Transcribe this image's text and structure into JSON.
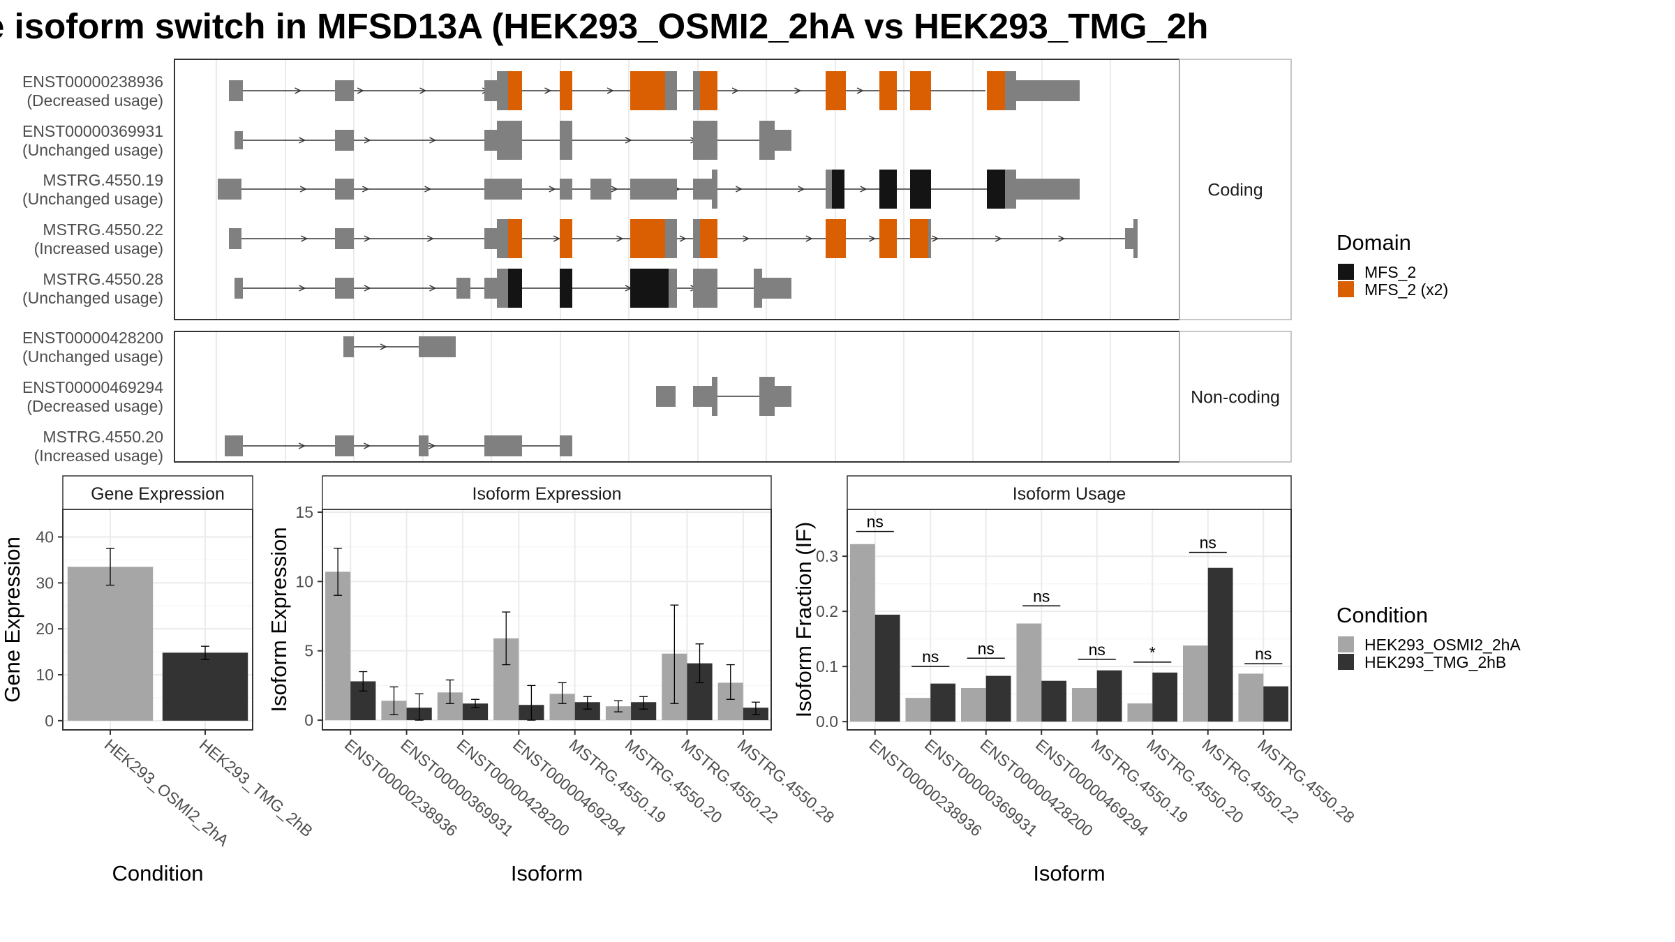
{
  "title": "e isoform switch in MFSD13A (HEK293_OSMI2_2hA vs HEK293_TMG_2h",
  "colors": {
    "mfs2": "#141414",
    "mfs2_x2": "#d95f02",
    "exon": "#808080",
    "cond1": "#a6a6a6",
    "cond2": "#333333"
  },
  "structure": {
    "coding_label": "Coding",
    "noncoding_label": "Non-coding",
    "coding": [
      {
        "id": "ENST00000238936",
        "usage": "(Decreased usage)"
      },
      {
        "id": "ENST00000369931",
        "usage": "(Unchanged usage)"
      },
      {
        "id": "MSTRG.4550.19",
        "usage": "(Unchanged usage)"
      },
      {
        "id": "MSTRG.4550.22",
        "usage": "(Increased usage)"
      },
      {
        "id": "MSTRG.4550.28",
        "usage": "(Unchanged usage)"
      }
    ],
    "noncoding": [
      {
        "id": "ENST00000428200",
        "usage": "(Unchanged usage)"
      },
      {
        "id": "ENST00000469294",
        "usage": "(Decreased usage)"
      },
      {
        "id": "MSTRG.4550.20",
        "usage": "(Increased usage)"
      }
    ]
  },
  "legend_domain": {
    "title": "Domain",
    "items": [
      {
        "label": "MFS_2",
        "color_key": "mfs2"
      },
      {
        "label": "MFS_2 (x2)",
        "color_key": "mfs2_x2"
      }
    ]
  },
  "legend_condition": {
    "title": "Condition",
    "items": [
      {
        "label": "HEK293_OSMI2_2hA",
        "color_key": "cond1"
      },
      {
        "label": "HEK293_TMG_2hB",
        "color_key": "cond2"
      }
    ]
  },
  "chart_data": [
    {
      "type": "bar",
      "title": "Gene Expression",
      "xlabel": "Condition",
      "ylabel": "Gene Expression",
      "ylim": [
        -2,
        46
      ],
      "yticks": [
        0,
        10,
        20,
        30,
        40
      ],
      "categories": [
        "HEK293_OSMI2_2hA",
        "HEK293_TMG_2hB"
      ],
      "values": [
        33.5,
        14.8
      ],
      "errors": [
        [
          29.5,
          37.5
        ],
        [
          13.3,
          16.2
        ]
      ]
    },
    {
      "type": "bar",
      "title": "Isoform Expression",
      "xlabel": "Isoform",
      "ylabel": "Isoform Expression",
      "ylim": [
        -0.7,
        15.2
      ],
      "yticks": [
        0,
        5,
        10,
        15
      ],
      "categories": [
        "ENST00000238936",
        "ENST00000369931",
        "ENST00000428200",
        "ENST00000469294",
        "MSTRG.4550.19",
        "MSTRG.4550.20",
        "MSTRG.4550.22",
        "MSTRG.4550.28"
      ],
      "series": [
        {
          "name": "HEK293_OSMI2_2hA",
          "values": [
            10.7,
            1.4,
            2.0,
            5.9,
            1.9,
            1.0,
            4.8,
            2.7
          ],
          "errors": [
            [
              9.0,
              12.4
            ],
            [
              0.4,
              2.4
            ],
            [
              1.2,
              2.9
            ],
            [
              4.0,
              7.8
            ],
            [
              1.2,
              2.7
            ],
            [
              0.6,
              1.4
            ],
            [
              1.2,
              8.3
            ],
            [
              1.5,
              4.0
            ]
          ]
        },
        {
          "name": "HEK293_TMG_2hB",
          "values": [
            2.8,
            0.9,
            1.2,
            1.1,
            1.3,
            1.3,
            4.1,
            0.9
          ],
          "errors": [
            [
              2.1,
              3.5
            ],
            [
              0.0,
              1.9
            ],
            [
              0.9,
              1.5
            ],
            [
              0.0,
              2.5
            ],
            [
              0.8,
              1.7
            ],
            [
              0.8,
              1.7
            ],
            [
              2.7,
              5.5
            ],
            [
              0.4,
              1.3
            ]
          ]
        }
      ]
    },
    {
      "type": "bar",
      "title": "Isoform Usage",
      "xlabel": "Isoform",
      "ylabel": "Isoform Fraction (IF)",
      "ylim": [
        -0.015,
        0.385
      ],
      "yticks": [
        0.0,
        0.1,
        0.2,
        0.3
      ],
      "ytick_labels": [
        "0.0",
        "0.1",
        "0.2",
        "0.3"
      ],
      "categories": [
        "ENST00000238936",
        "ENST00000369931",
        "ENST00000428200",
        "ENST00000469294",
        "MSTRG.4550.19",
        "MSTRG.4550.20",
        "MSTRG.4550.22",
        "MSTRG.4550.28"
      ],
      "series": [
        {
          "name": "HEK293_OSMI2_2hA",
          "values": [
            0.322,
            0.043,
            0.061,
            0.178,
            0.061,
            0.033,
            0.138,
            0.087
          ]
        },
        {
          "name": "HEK293_TMG_2hB",
          "values": [
            0.194,
            0.069,
            0.083,
            0.074,
            0.093,
            0.089,
            0.279,
            0.064
          ]
        }
      ],
      "significance": [
        "ns",
        "ns",
        "ns",
        "ns",
        "ns",
        "*",
        "ns",
        "ns"
      ],
      "significance_y": [
        0.345,
        0.1,
        0.115,
        0.21,
        0.113,
        0.108,
        0.307,
        0.105
      ]
    }
  ]
}
